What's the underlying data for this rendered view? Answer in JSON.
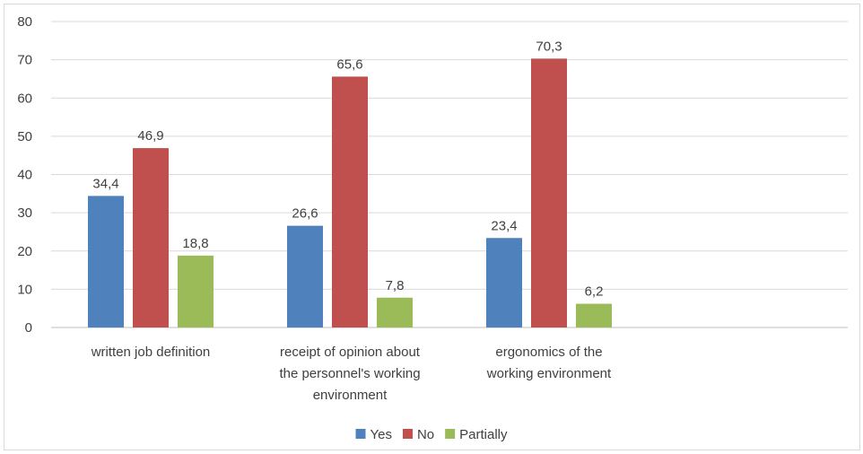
{
  "chart_data": {
    "type": "bar",
    "title": "",
    "xlabel": "",
    "ylabel": "",
    "ylim": [
      0,
      80
    ],
    "yticks": [
      "0",
      "10",
      "20",
      "30",
      "40",
      "50",
      "60",
      "70",
      "80"
    ],
    "grid": true,
    "legend_position": "bottom",
    "decimal_separator": ",",
    "categories": [
      [
        "written job definition"
      ],
      [
        "receipt of opinion about",
        "the personnel's working",
        "environment"
      ],
      [
        "ergonomics of the",
        "working environment"
      ],
      [
        ""
      ]
    ],
    "series": [
      {
        "name": "Yes",
        "color": "#4f81bd",
        "values": [
          34.4,
          26.6,
          23.4,
          null
        ]
      },
      {
        "name": "No",
        "color": "#c0504d",
        "values": [
          46.9,
          65.6,
          70.3,
          null
        ]
      },
      {
        "name": "Partially",
        "color": "#9bbb59",
        "values": [
          18.8,
          7.8,
          6.2,
          null
        ]
      }
    ]
  }
}
